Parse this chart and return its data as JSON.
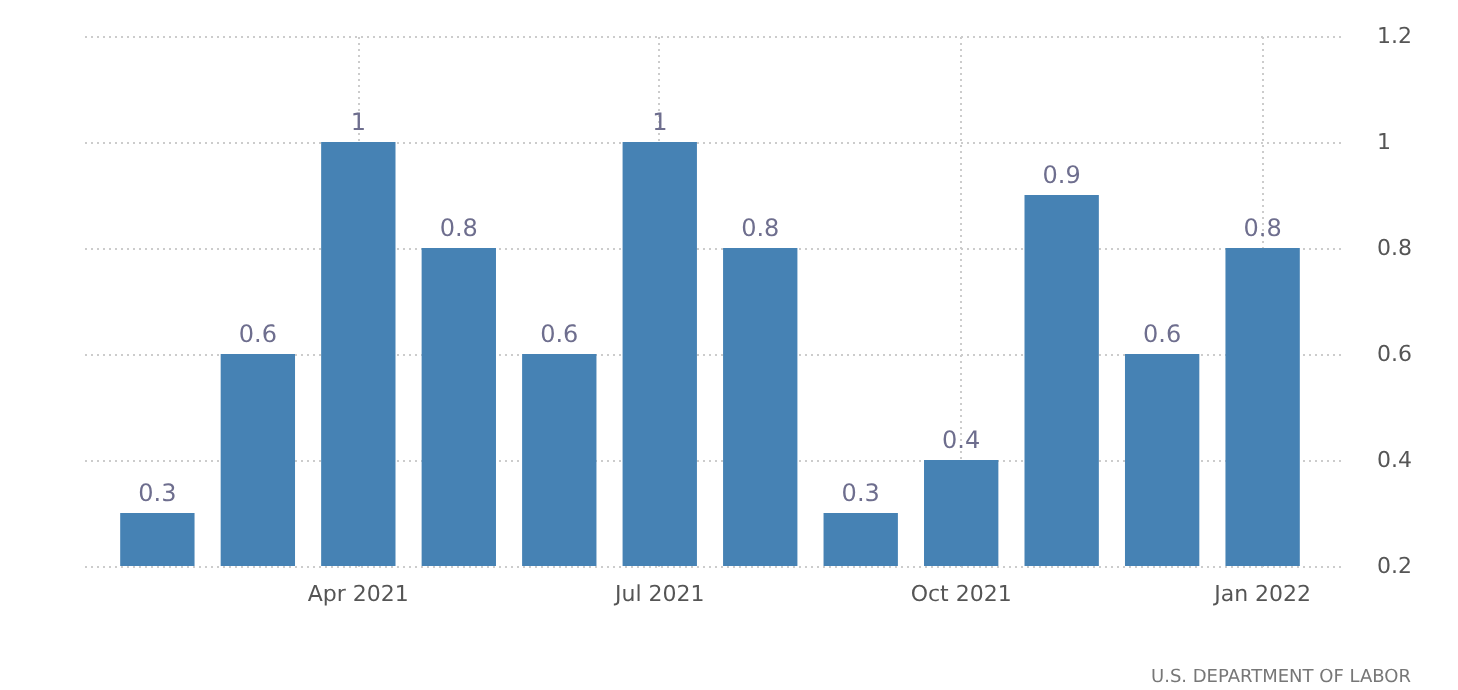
{
  "chart_data": {
    "type": "bar",
    "categories": [
      null,
      null,
      "Apr 2021",
      null,
      null,
      "Jul 2021",
      null,
      null,
      "Oct 2021",
      null,
      null,
      "Jan 2022"
    ],
    "values": [
      0.3,
      0.6,
      1,
      0.8,
      0.6,
      1,
      0.8,
      0.3,
      0.4,
      0.9,
      0.6,
      0.8
    ],
    "color": "#4682b4",
    "ylim": [
      0.2,
      1.2
    ],
    "yticks": [
      0.2,
      0.4,
      0.6,
      0.8,
      1,
      1.2
    ],
    "grid": true,
    "data_labels": true,
    "annotations": [
      "U.S. DEPARTMENT OF LABOR"
    ]
  }
}
